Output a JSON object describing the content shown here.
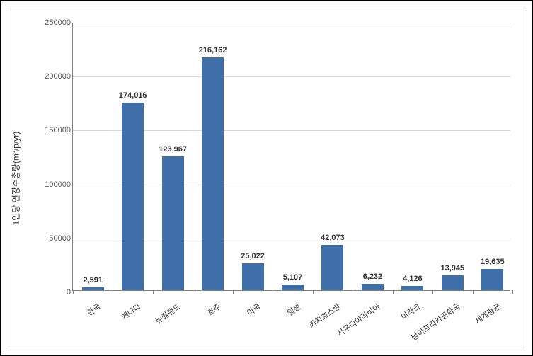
{
  "chart": {
    "type": "bar",
    "y_axis_label": "1인당 연강수총량(m³/p/yr)",
    "y_axis_label_fontsize": 12,
    "ylim": [
      0,
      250000
    ],
    "ytick_step": 50000,
    "yticks": [
      0,
      50000,
      100000,
      150000,
      200000,
      250000
    ],
    "categories": [
      "한국",
      "캐나다",
      "뉴질랜드",
      "호주",
      "미국",
      "일본",
      "카자흐스탄",
      "사우디아라비아",
      "이라크",
      "남아프리카공화국",
      "세계평균"
    ],
    "values": [
      2591,
      174016,
      123967,
      216162,
      25022,
      5107,
      42073,
      6232,
      4126,
      13945,
      19635
    ],
    "value_labels": [
      "2,591",
      "174,016",
      "123,967",
      "216,162",
      "25,022",
      "5,107",
      "42,073",
      "6,232",
      "4,126",
      "13,945",
      "19,635"
    ],
    "bar_color": "#3f6fa8",
    "bar_width_ratio": 0.55,
    "background_color": "#ffffff",
    "grid_color": "#d9d9d9",
    "axis_color": "#808080",
    "border_color": "#bfbfbf",
    "outer_border_color": "#000000",
    "label_fontsize": 11,
    "x_label_rotation": -35
  }
}
